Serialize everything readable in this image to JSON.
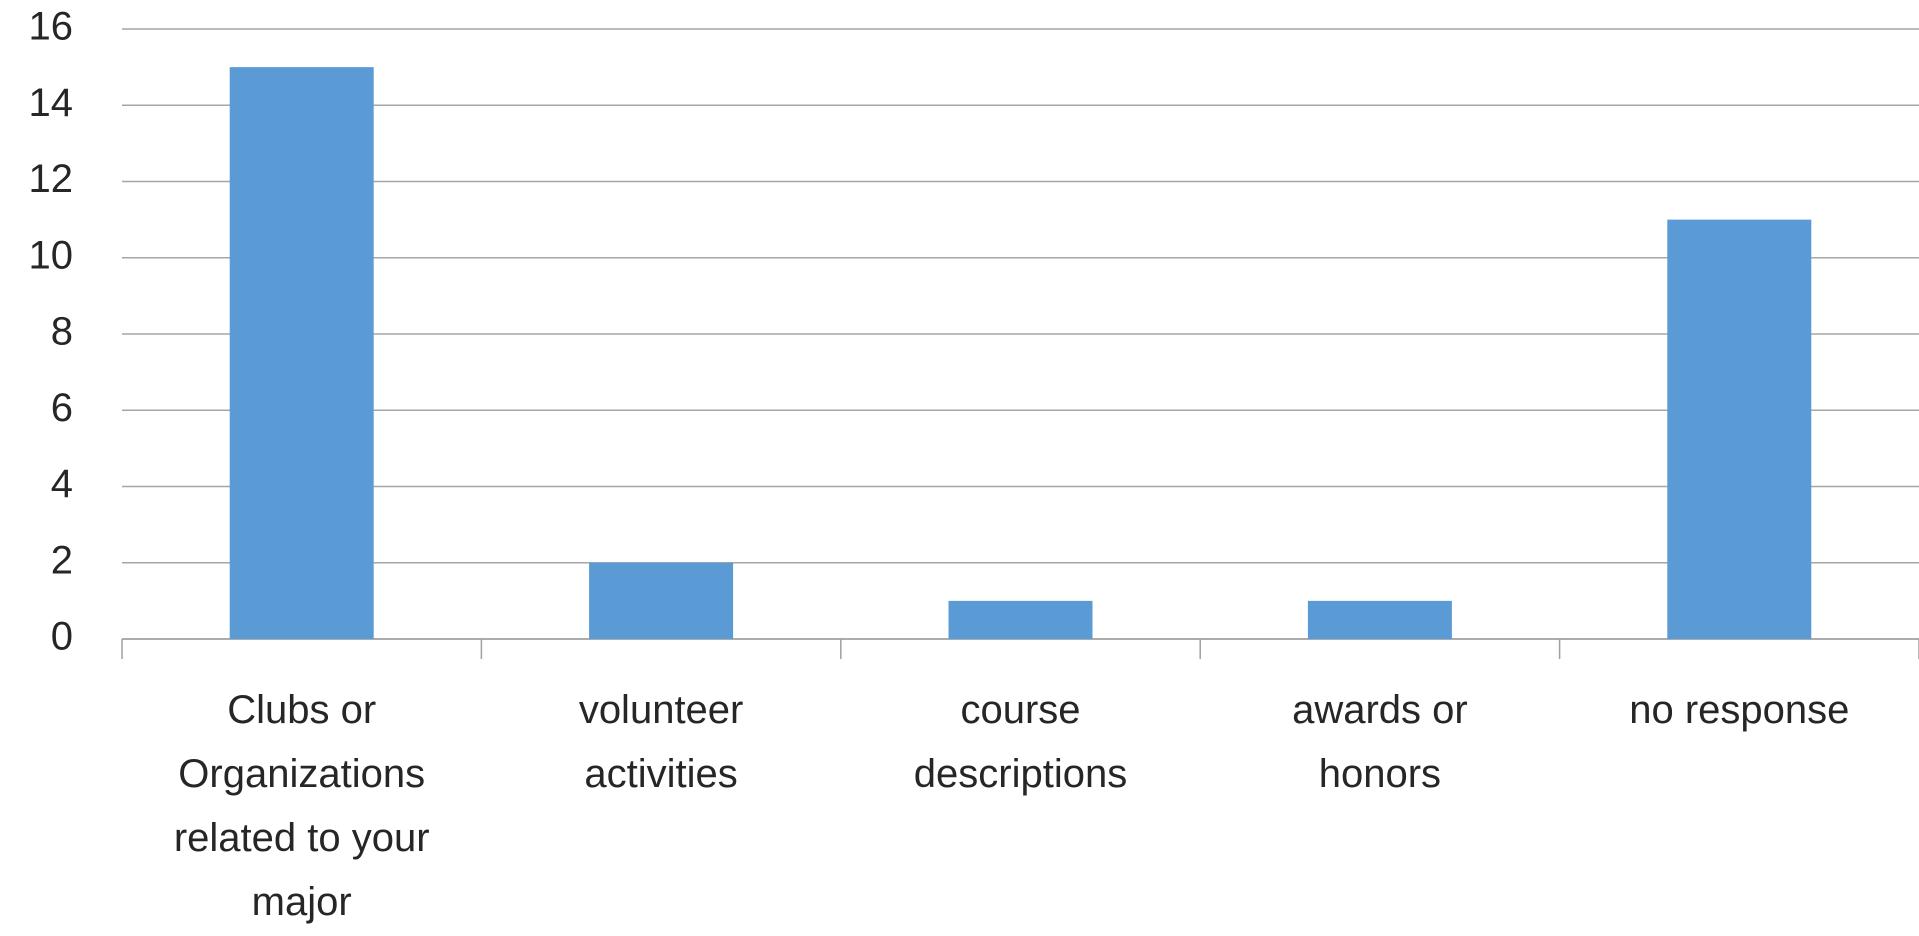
{
  "chart_data": {
    "type": "bar",
    "categories": [
      "Clubs or Organizations related to your major",
      "volunteer activities",
      "course descriptions",
      "awards or honors",
      "no response"
    ],
    "values": [
      15,
      2,
      1,
      1,
      11
    ],
    "color": "#5b9bd5",
    "ylim": [
      0,
      16
    ],
    "yticks": [
      0,
      2,
      4,
      6,
      8,
      10,
      12,
      14,
      16
    ],
    "grid": true
  }
}
